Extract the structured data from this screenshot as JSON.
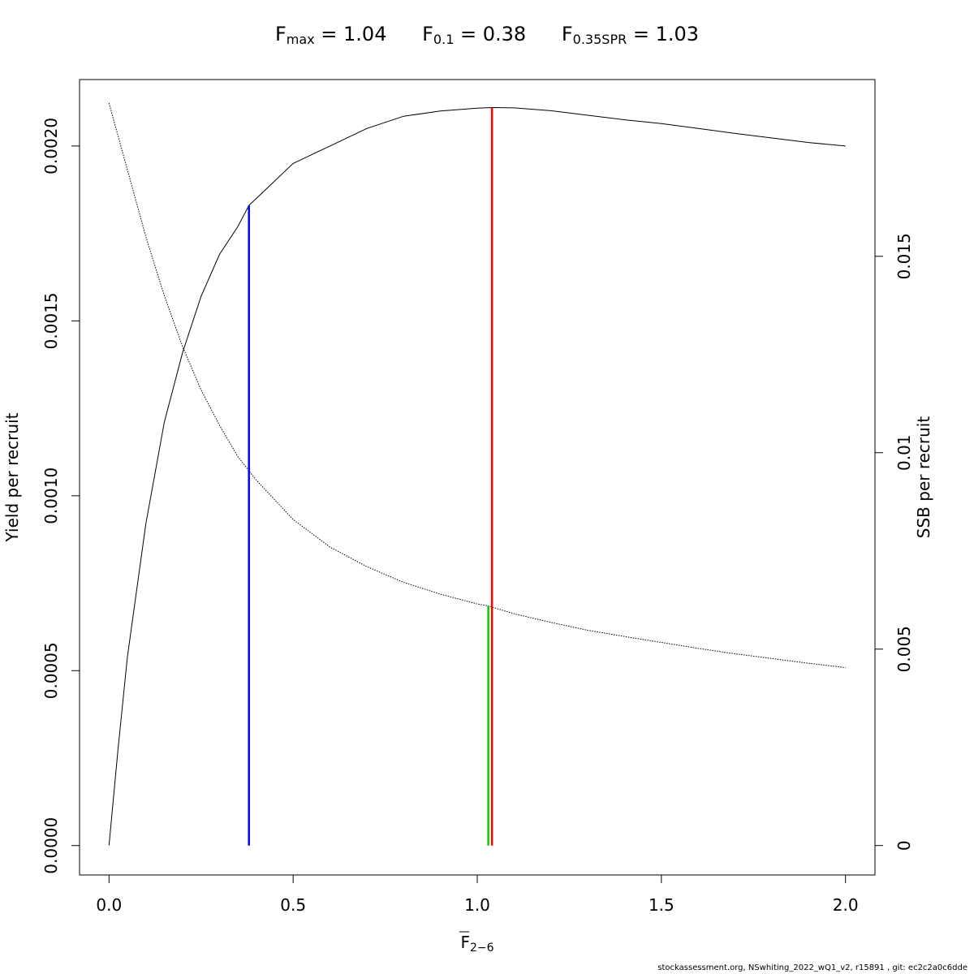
{
  "title": {
    "fmax_label": "F",
    "fmax_sub": "max",
    "fmax_value": "= 1.04",
    "f01_label": "F",
    "f01_sub": "0.1",
    "f01_value": "= 0.38",
    "fspr_label": "F",
    "fspr_sub": "0.35SPR",
    "fspr_value": "= 1.03"
  },
  "footer": "stockassessment.org, NSwhiting_2022_wQ1_v2, r15891 , git: ec2c2a0c6dde",
  "chart_data": {
    "type": "line",
    "xlabel": "F",
    "xlabel_sub": "2−6",
    "ylabel_left": "Yield per recruit",
    "ylabel_right": "SSB per recruit",
    "xlim": [
      -0.08,
      2.08
    ],
    "ylim_left": [
      -8.412e-05,
      0.00219
    ],
    "ylim_right": [
      -0.00075,
      0.0195
    ],
    "x_ticks": [
      0.0,
      0.5,
      1.0,
      1.5,
      2.0
    ],
    "x_tick_labels": [
      "0.0",
      "0.5",
      "1.0",
      "1.5",
      "2.0"
    ],
    "y_left_ticks": [
      0.0,
      0.0005,
      0.001,
      0.0015,
      0.002
    ],
    "y_left_tick_labels": [
      "0.0000",
      "0.0005",
      "0.0010",
      "0.0015",
      "0.0020"
    ],
    "y_right_ticks": [
      0,
      0.005,
      0.01,
      0.015
    ],
    "y_right_tick_labels": [
      "0",
      "0.005",
      "0.01",
      "0.015"
    ],
    "series": [
      {
        "axis": "left",
        "style": "solid",
        "color": "#000000",
        "x": [
          0,
          0.025,
          0.05,
          0.1,
          0.15,
          0.2,
          0.25,
          0.3,
          0.35,
          0.38,
          0.4,
          0.5,
          0.6,
          0.7,
          0.8,
          0.9,
          1.0,
          1.04,
          1.1,
          1.2,
          1.3,
          1.4,
          1.5,
          1.6,
          1.7,
          1.8,
          1.9,
          2.0
        ],
        "y": [
          0,
          0.00028,
          0.00054,
          0.00092,
          0.00121,
          0.00141,
          0.00157,
          0.00169,
          0.00177,
          0.00183,
          0.00185,
          0.00195,
          0.002,
          0.00205,
          0.002085,
          0.0021,
          0.002108,
          0.00211,
          0.002109,
          0.002101,
          0.002088,
          0.002075,
          0.002064,
          0.00205,
          0.002036,
          0.002023,
          0.00201,
          0.002
        ]
      },
      {
        "axis": "right",
        "style": "dotted",
        "color": "#000000",
        "x": [
          0,
          0.05,
          0.1,
          0.15,
          0.2,
          0.25,
          0.3,
          0.35,
          0.4,
          0.5,
          0.6,
          0.7,
          0.8,
          0.9,
          1.0,
          1.03,
          1.1,
          1.2,
          1.3,
          1.4,
          1.5,
          1.6,
          1.7,
          1.8,
          1.9,
          2.0
        ],
        "y": [
          0.0189,
          0.0172,
          0.0155,
          0.014,
          0.0127,
          0.0116,
          0.0107,
          0.0099,
          0.0093,
          0.0083,
          0.0076,
          0.0071,
          0.0067,
          0.0064,
          0.00615,
          0.0061,
          0.0059,
          0.00568,
          0.00548,
          0.00532,
          0.00517,
          0.00502,
          0.00488,
          0.00476,
          0.00464,
          0.00453
        ]
      }
    ],
    "reference_lines": [
      {
        "name": "F0.1",
        "x": 0.38,
        "color": "#0000ff",
        "axis": "left",
        "y_top": 0.00183
      },
      {
        "name": "F0.35SPR",
        "x": 1.03,
        "color": "#00cc00",
        "axis": "right",
        "y_top": 0.0061
      },
      {
        "name": "Fmax",
        "x": 1.04,
        "color": "#ff0000",
        "axis": "left",
        "y_top": 0.00211
      }
    ]
  }
}
